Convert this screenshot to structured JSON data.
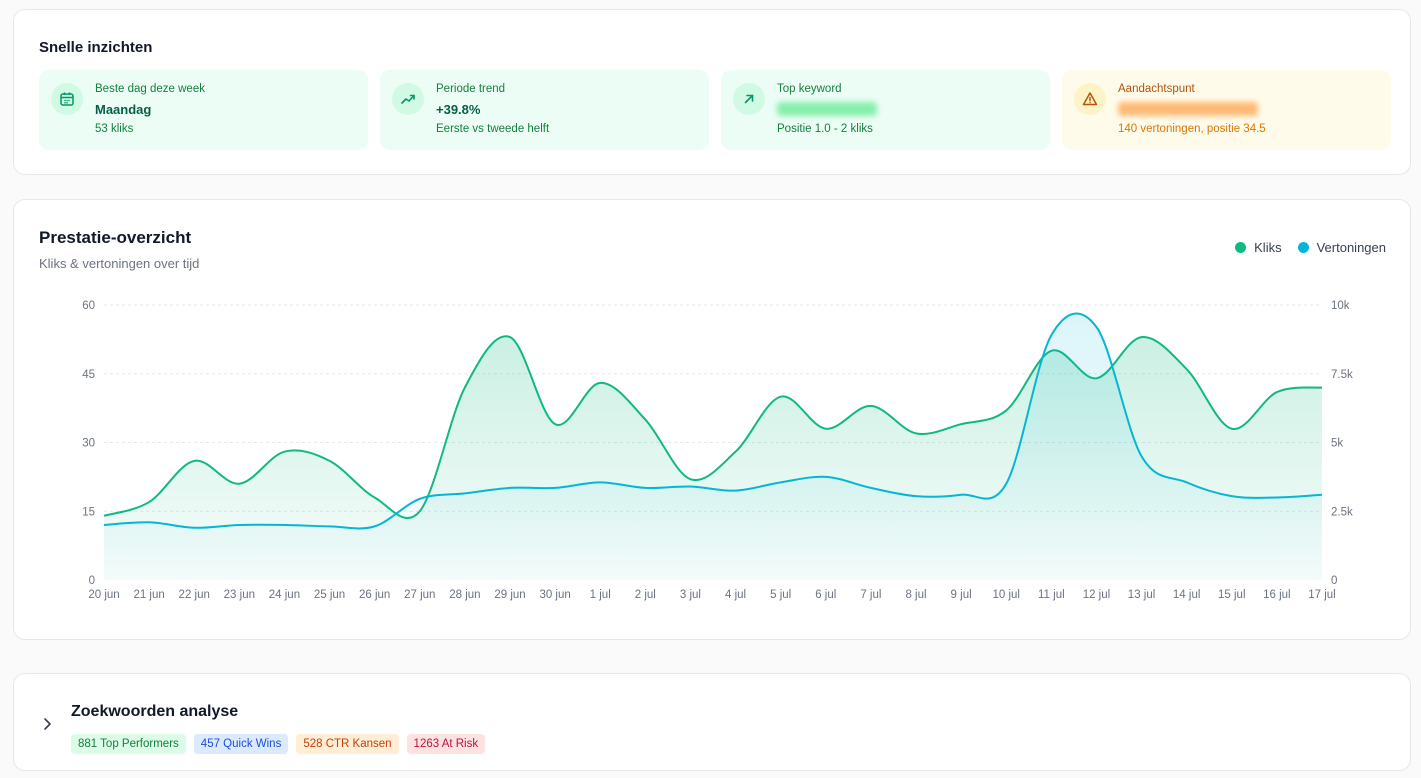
{
  "insights": {
    "title": "Snelle inzichten",
    "tiles": [
      {
        "label": "Beste dag deze week",
        "value": "Maandag",
        "sub": "53 kliks",
        "icon": "calendar-icon"
      },
      {
        "label": "Periode trend",
        "value": "+39.8%",
        "sub": "Eerste vs tweede helft",
        "icon": "trend-up-icon"
      },
      {
        "label": "Top keyword",
        "sub": "Positie 1.0 - 2 kliks",
        "icon": "arrow-up-right-icon"
      },
      {
        "label": "Aandachtspunt",
        "sub": "140 vertoningen, positie 34.5",
        "icon": "warning-icon"
      }
    ]
  },
  "performance": {
    "title": "Prestatie-overzicht",
    "subtitle": "Kliks & vertoningen over tijd",
    "legend": {
      "clicks": "Kliks",
      "impressions": "Vertoningen"
    }
  },
  "chart_data": {
    "type": "area",
    "categories": [
      "20 jun",
      "21 jun",
      "22 jun",
      "23 jun",
      "24 jun",
      "25 jun",
      "26 jun",
      "27 jun",
      "28 jun",
      "29 jun",
      "30 jun",
      "1 jul",
      "2 jul",
      "3 jul",
      "4 jul",
      "5 jul",
      "6 jul",
      "7 jul",
      "8 jul",
      "9 jul",
      "10 jul",
      "11 jul",
      "12 jul",
      "13 jul",
      "14 jul",
      "15 jul",
      "16 jul",
      "17 jul"
    ],
    "series": [
      {
        "name": "Kliks",
        "axis": "left",
        "color": "#10b981",
        "values": [
          14,
          17,
          26,
          21,
          28,
          26,
          18,
          15,
          42,
          53,
          34,
          43,
          35,
          22,
          28,
          40,
          33,
          38,
          32,
          34,
          37,
          50,
          44,
          53,
          46,
          33,
          41,
          42
        ]
      },
      {
        "name": "Vertoningen",
        "axis": "right",
        "color": "#06b6d4",
        "values": [
          2000,
          2100,
          1900,
          2000,
          2000,
          1950,
          1950,
          2950,
          3150,
          3350,
          3350,
          3550,
          3350,
          3400,
          3250,
          3550,
          3750,
          3350,
          3050,
          3100,
          3500,
          8900,
          9200,
          4500,
          3550,
          3050,
          3000,
          3100
        ]
      }
    ],
    "y_left": {
      "ticks": [
        "0",
        "15",
        "30",
        "45",
        "60"
      ],
      "range": [
        0,
        60
      ]
    },
    "y_right": {
      "ticks": [
        "0",
        "2.5k",
        "5k",
        "7.5k",
        "10k"
      ],
      "range": [
        0,
        10000
      ]
    },
    "grid": true,
    "legend": "top-right"
  },
  "keywords": {
    "title": "Zoekwoorden analyse",
    "badges": [
      {
        "label": "881 Top Performers",
        "bg": "#dcfce7",
        "fg": "#15803d"
      },
      {
        "label": "457 Quick Wins",
        "bg": "#dbeafe",
        "fg": "#1d4ed8"
      },
      {
        "label": "528 CTR Kansen",
        "bg": "#ffedd5",
        "fg": "#c2410c"
      },
      {
        "label": "1263 At Risk",
        "bg": "#fee2e2",
        "fg": "#be123c"
      }
    ]
  }
}
